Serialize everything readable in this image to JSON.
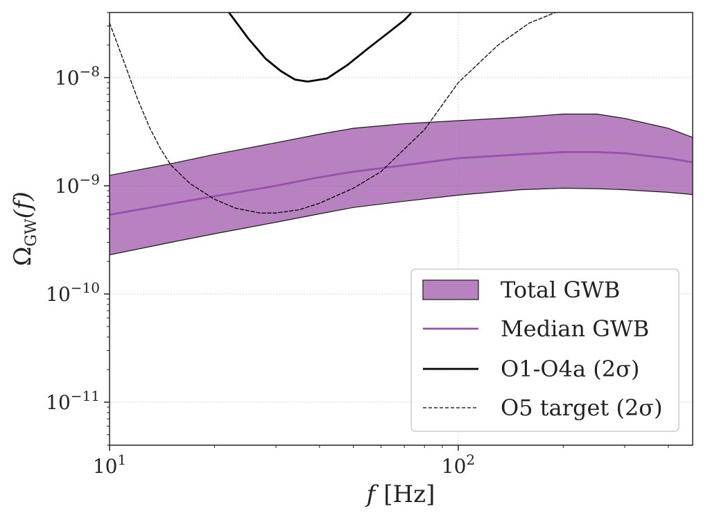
{
  "chart_data": {
    "type": "area",
    "title": "",
    "xlabel": "f",
    "xlabel_unit": "[Hz]",
    "ylabel_base": "Ω",
    "ylabel_sub": "GW",
    "ylabel_arg": "(f)",
    "xscale": "log",
    "yscale": "log",
    "xlim": [
      10,
      470
    ],
    "ylim": [
      4e-12,
      4e-08
    ],
    "grid": true,
    "legend_position": "lower-right",
    "x_ticks": [
      {
        "value": 10,
        "base": "10",
        "exp": "1"
      },
      {
        "value": 100,
        "base": "10",
        "exp": "2"
      }
    ],
    "y_ticks": [
      {
        "value": 1e-08,
        "base": "10",
        "exp": "−8"
      },
      {
        "value": 1e-09,
        "base": "10",
        "exp": "−9"
      },
      {
        "value": 1e-10,
        "base": "10",
        "exp": "−10"
      },
      {
        "value": 1e-11,
        "base": "10",
        "exp": "−11"
      }
    ],
    "series": [
      {
        "name": "Total GWB",
        "kind": "band",
        "color": "#a45fb0",
        "edge_color": "#1a1a1a",
        "x": [
          10,
          15,
          20,
          30,
          40,
          50,
          70,
          100,
          150,
          200,
          250,
          300,
          400,
          470
        ],
        "upper": [
          1.25e-09,
          1.6e-09,
          1.95e-09,
          2.5e-09,
          3e-09,
          3.4e-09,
          3.75e-09,
          4e-09,
          4.3e-09,
          4.6e-09,
          4.6e-09,
          4.2e-09,
          3.4e-09,
          2.8e-09
        ],
        "lower": [
          2.3e-10,
          3e-10,
          3.6e-10,
          4.6e-10,
          5.5e-10,
          6.3e-10,
          7.2e-10,
          8.2e-10,
          9.2e-10,
          9.5e-10,
          9.4e-10,
          9.2e-10,
          8.7e-10,
          8.3e-10
        ]
      },
      {
        "name": "Median GWB",
        "kind": "line",
        "color": "#9a4fae",
        "x": [
          10,
          15,
          20,
          30,
          40,
          50,
          70,
          100,
          150,
          200,
          250,
          300,
          400,
          470
        ],
        "y": [
          5.4e-10,
          6.8e-10,
          8e-10,
          1e-09,
          1.2e-09,
          1.35e-09,
          1.55e-09,
          1.8e-09,
          1.95e-09,
          2.05e-09,
          2.05e-09,
          2e-09,
          1.8e-09,
          1.65e-09
        ]
      },
      {
        "name": "O1-O4a (2σ)",
        "kind": "line",
        "color": "#000000",
        "x": [
          22,
          25,
          28,
          31,
          34,
          37,
          42,
          48,
          55,
          63,
          70,
          73
        ],
        "y": [
          4e-08,
          2.3e-08,
          1.5e-08,
          1.15e-08,
          9.6e-09,
          9.2e-09,
          9.8e-09,
          1.3e-08,
          1.85e-08,
          2.6e-08,
          3.4e-08,
          3.9e-08
        ]
      },
      {
        "name": "O5 target (2σ)",
        "kind": "line",
        "dashed": true,
        "color": "#000000",
        "x": [
          10,
          11,
          12,
          13,
          14,
          15,
          17,
          20,
          23,
          27,
          30,
          35,
          40,
          50,
          60,
          80,
          100,
          130,
          160,
          190
        ],
        "y": [
          3.2e-08,
          1.4e-08,
          6.5e-09,
          3.5e-09,
          2.2e-09,
          1.55e-09,
          1.05e-09,
          7.5e-10,
          6.2e-10,
          5.6e-10,
          5.6e-10,
          6e-10,
          6.9e-10,
          9.5e-10,
          1.35e-09,
          3.3e-09,
          9e-09,
          2e-08,
          3.2e-08,
          4e-08
        ]
      }
    ],
    "legend": [
      {
        "label": "Total GWB",
        "kind": "patch"
      },
      {
        "label": "Median GWB",
        "kind": "line"
      },
      {
        "label": "O1-O4a (2σ)",
        "kind": "solid"
      },
      {
        "label": "O5 target (2σ)",
        "kind": "dashed"
      }
    ]
  }
}
